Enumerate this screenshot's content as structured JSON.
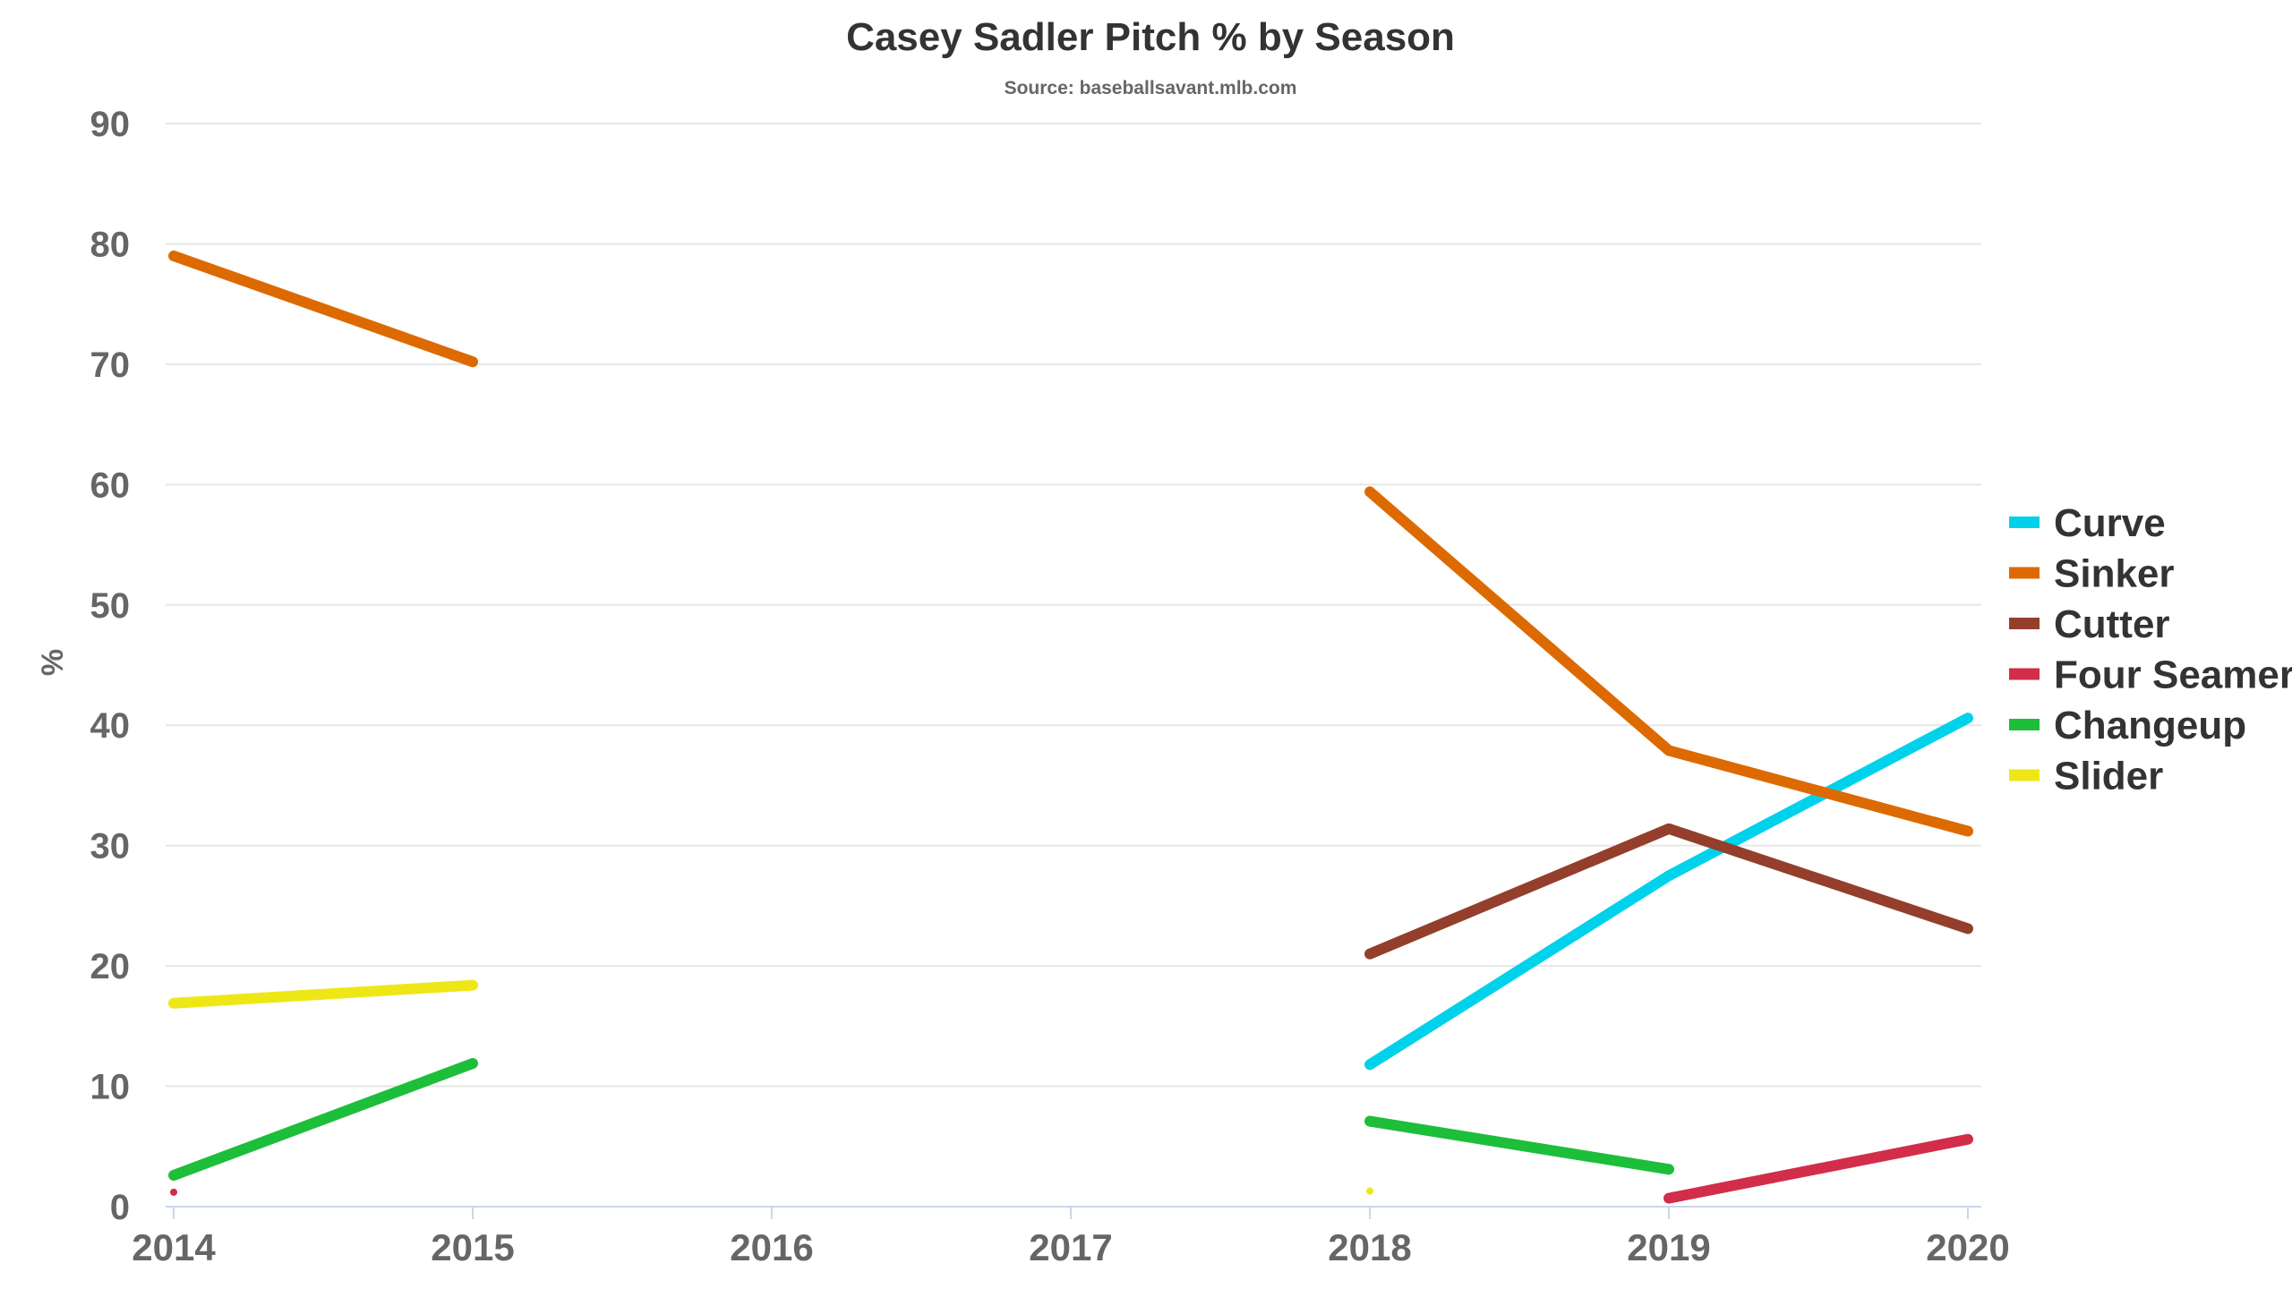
{
  "chart_data": {
    "type": "line",
    "title": "Casey Sadler Pitch % by Season",
    "subtitle": "Source: baseballsavant.mlb.com",
    "xlabel": "",
    "ylabel": "%",
    "x": [
      "2014",
      "2015",
      "2016",
      "2017",
      "2018",
      "2019",
      "2020"
    ],
    "ylim": [
      0,
      90
    ],
    "yticks": [
      0,
      10,
      20,
      30,
      40,
      50,
      60,
      70,
      80,
      90
    ],
    "grid": true,
    "legend_position": "right",
    "series": [
      {
        "name": "Curve",
        "color": "#00d2eb",
        "values": [
          null,
          null,
          null,
          null,
          11.8,
          27.5,
          40.6
        ]
      },
      {
        "name": "Sinker",
        "color": "#dd6a00",
        "values": [
          79.0,
          70.2,
          null,
          null,
          59.4,
          37.9,
          31.2
        ]
      },
      {
        "name": "Cutter",
        "color": "#933f2c",
        "values": [
          null,
          null,
          null,
          null,
          21.0,
          31.4,
          23.1
        ]
      },
      {
        "name": "Four Seamer",
        "color": "#d22d49",
        "values": [
          1.2,
          null,
          null,
          null,
          null,
          0.7,
          5.6
        ]
      },
      {
        "name": "Changeup",
        "color": "#1dbe3a",
        "values": [
          2.6,
          11.9,
          null,
          null,
          7.1,
          3.1,
          null
        ]
      },
      {
        "name": "Slider",
        "color": "#eee716",
        "values": [
          16.9,
          18.4,
          null,
          null,
          1.3,
          null,
          null
        ]
      }
    ]
  }
}
